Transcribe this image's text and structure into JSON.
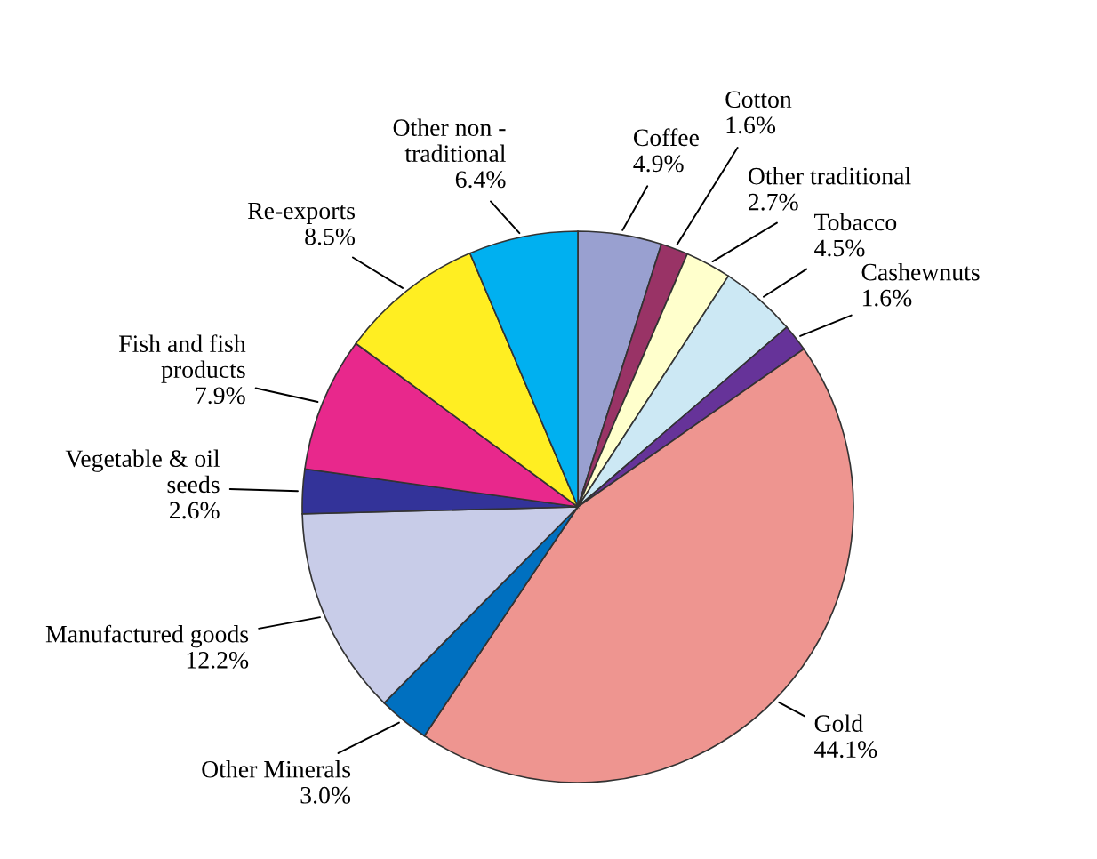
{
  "chart_data": {
    "type": "pie",
    "categories": [
      "Coffee",
      "Cotton",
      "Other traditional",
      "Tobacco",
      "Cashewnuts",
      "Gold",
      "Other Minerals",
      "Manufactured goods",
      "Vegetable & oil\nseeds",
      "Fish and fish\nproducts",
      "Re-exports",
      "Other non -\ntraditional"
    ],
    "values": [
      4.9,
      1.6,
      2.7,
      4.5,
      1.6,
      44.1,
      3.0,
      12.2,
      2.6,
      7.9,
      8.5,
      6.4
    ],
    "colors": [
      "#99a0d0",
      "#993366",
      "#ffffcc",
      "#cce8f4",
      "#663399",
      "#ee9590",
      "#0070c0",
      "#c8cce8",
      "#333399",
      "#e8288c",
      "#ffee22",
      "#00b0f0"
    ],
    "value_labels": [
      "4.9%",
      "1.6%",
      "2.7%",
      "4.5%",
      "1.6%",
      "44.1%",
      "3.0%",
      "12.2%",
      "2.6%",
      "7.9%",
      "8.5%",
      "6.4%"
    ]
  }
}
